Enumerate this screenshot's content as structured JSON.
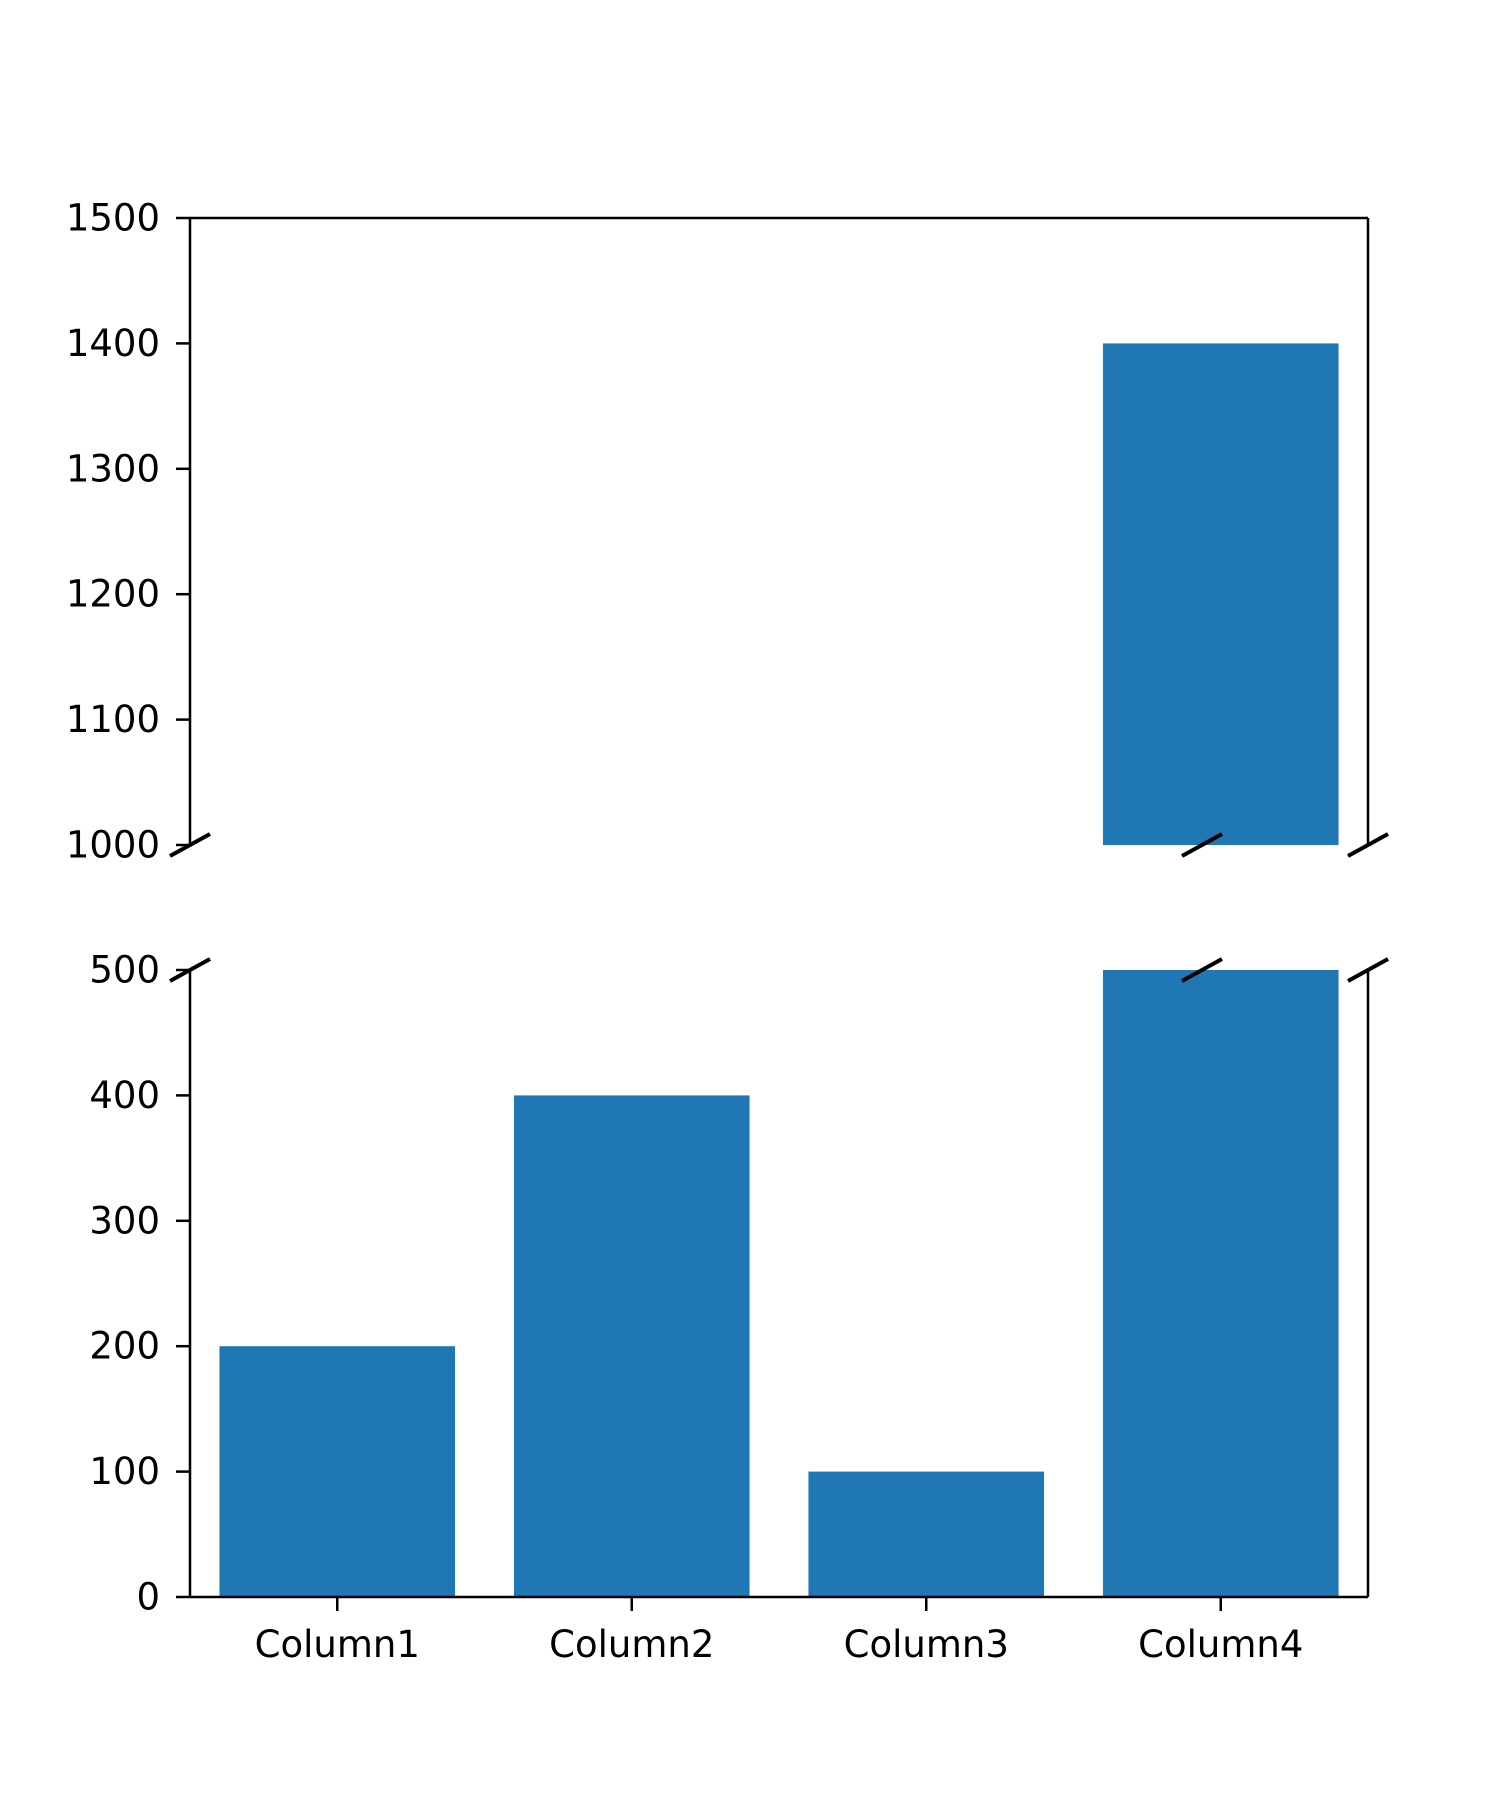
{
  "chart_data": {
    "type": "bar",
    "broken_axis": true,
    "categories": [
      "Column1",
      "Column2",
      "Column3",
      "Column4"
    ],
    "values": [
      200,
      400,
      100,
      1400
    ],
    "bar_color": "#1f77b4",
    "title": "",
    "xlabel": "",
    "ylabel": "",
    "panels": [
      {
        "name": "top",
        "ylim": [
          1000,
          1500
        ],
        "yticks": [
          1000,
          1100,
          1200,
          1300,
          1400,
          1500
        ],
        "ytick_labels": [
          "1000",
          "1100",
          "1200",
          "1300",
          "1400",
          "1500"
        ],
        "show_xticks": false
      },
      {
        "name": "bottom",
        "ylim": [
          0,
          500
        ],
        "yticks": [
          0,
          100,
          200,
          300,
          400,
          500
        ],
        "ytick_labels": [
          "0",
          "100",
          "200",
          "300",
          "400",
          "500"
        ],
        "show_xticks": true
      }
    ],
    "grid": false,
    "legend": "none"
  }
}
